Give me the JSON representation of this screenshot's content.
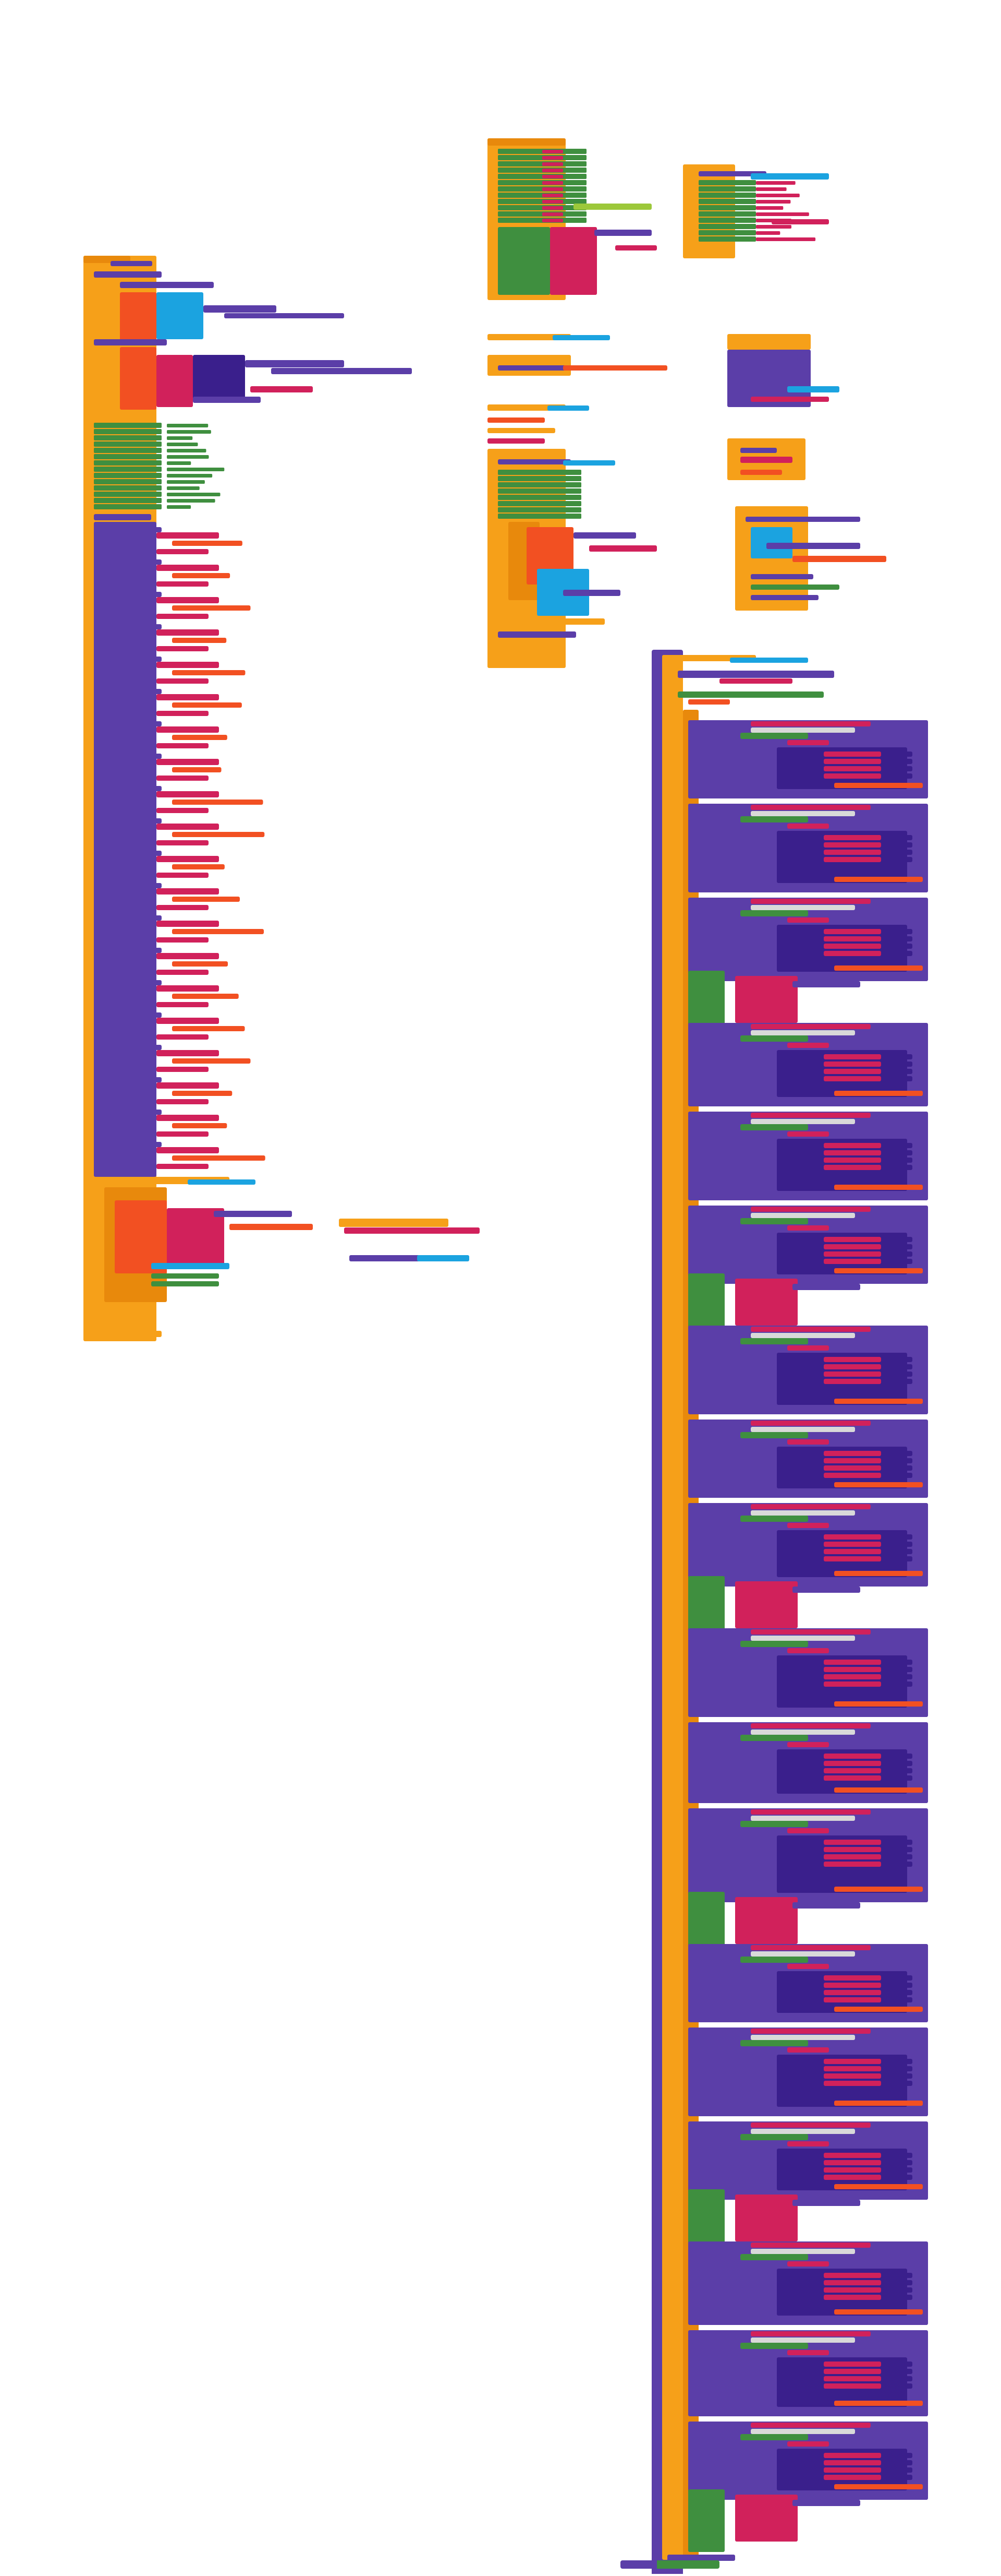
{
  "workspace": {
    "title": "",
    "background": "#ffffff"
  },
  "palette": {
    "event_orange": "#f6a019",
    "event_dark_orange": "#e8890c",
    "procedure_purple": "#5b3ea8",
    "dark_purple": "#3a1f8c",
    "variable_green": "#3f8f3f",
    "magenta": "#d1215b",
    "cyan": "#1ba3e0",
    "red_orange": "#f25022",
    "light_gray": "#d9d9d9",
    "yellow_green": "#9cc83a"
  },
  "block_groups": [
    {
      "name": "left-event-stack",
      "color": "event_orange"
    },
    {
      "name": "middle-top-stack",
      "color": "event_orange"
    },
    {
      "name": "middle-procedure-stack",
      "color": "event_orange"
    },
    {
      "name": "right-top-stack",
      "color": "event_orange"
    },
    {
      "name": "right-small-stacks",
      "color": "event_orange"
    },
    {
      "name": "large-right-procedure",
      "color": "procedure_purple"
    },
    {
      "name": "small-floating-block",
      "color": "event_orange"
    },
    {
      "name": "bottom-floating-block",
      "color": "procedure_purple"
    }
  ]
}
